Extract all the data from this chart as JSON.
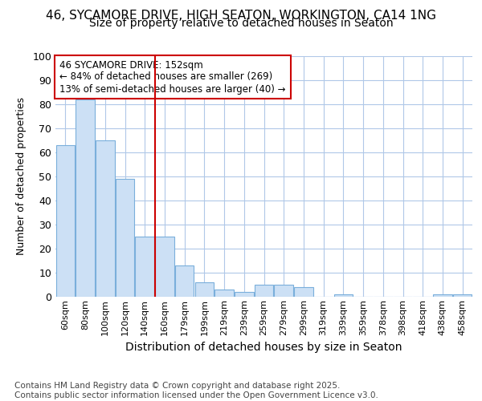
{
  "title1": "46, SYCAMORE DRIVE, HIGH SEATON, WORKINGTON, CA14 1NG",
  "title2": "Size of property relative to detached houses in Seaton",
  "xlabel": "Distribution of detached houses by size in Seaton",
  "ylabel": "Number of detached properties",
  "categories": [
    "60sqm",
    "80sqm",
    "100sqm",
    "120sqm",
    "140sqm",
    "160sqm",
    "179sqm",
    "199sqm",
    "219sqm",
    "239sqm",
    "259sqm",
    "279sqm",
    "299sqm",
    "319sqm",
    "339sqm",
    "359sqm",
    "378sqm",
    "398sqm",
    "418sqm",
    "438sqm",
    "458sqm"
  ],
  "values": [
    63,
    82,
    65,
    49,
    25,
    25,
    13,
    6,
    3,
    2,
    5,
    5,
    4,
    0,
    1,
    0,
    0,
    0,
    0,
    1,
    1
  ],
  "bar_color": "#cce0f5",
  "bar_edge_color": "#7aafdb",
  "vline_color": "#cc0000",
  "annotation_text": "46 SYCAMORE DRIVE: 152sqm\n← 84% of detached houses are smaller (269)\n13% of semi-detached houses are larger (40) →",
  "annotation_box_color": "#ffffff",
  "annotation_box_edge": "#cc0000",
  "ylim": [
    0,
    100
  ],
  "yticks": [
    0,
    10,
    20,
    30,
    40,
    50,
    60,
    70,
    80,
    90,
    100
  ],
  "grid_color": "#b0c8e8",
  "bg_color": "#ffffff",
  "footer": "Contains HM Land Registry data © Crown copyright and database right 2025.\nContains public sector information licensed under the Open Government Licence v3.0.",
  "title_fontsize": 11,
  "subtitle_fontsize": 10,
  "footer_fontsize": 7.5
}
